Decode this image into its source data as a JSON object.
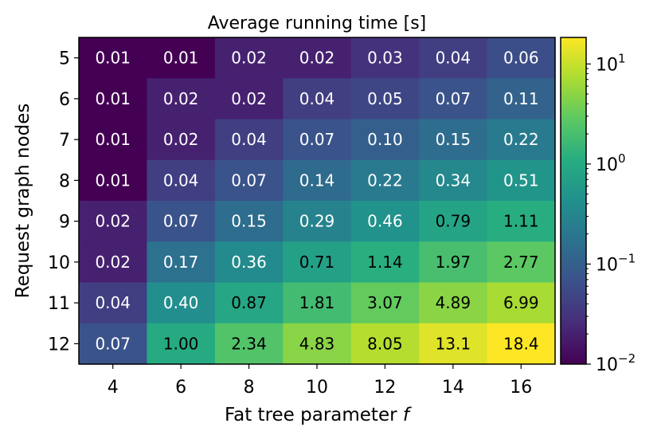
{
  "chart_data": {
    "type": "heatmap",
    "title": "Average running time [s]",
    "xlabel": "Fat tree parameter",
    "xlabel_var": "f",
    "ylabel": "Request graph nodes",
    "x": [
      "4",
      "6",
      "8",
      "10",
      "12",
      "14",
      "16"
    ],
    "y": [
      "5",
      "6",
      "7",
      "8",
      "9",
      "10",
      "11",
      "12"
    ],
    "values": [
      [
        0.01,
        0.01,
        0.02,
        0.02,
        0.03,
        0.04,
        0.06
      ],
      [
        0.01,
        0.02,
        0.02,
        0.04,
        0.05,
        0.07,
        0.11
      ],
      [
        0.01,
        0.02,
        0.04,
        0.07,
        0.1,
        0.15,
        0.22
      ],
      [
        0.01,
        0.04,
        0.07,
        0.14,
        0.22,
        0.34,
        0.51
      ],
      [
        0.02,
        0.07,
        0.15,
        0.29,
        0.46,
        0.79,
        1.11
      ],
      [
        0.02,
        0.17,
        0.36,
        0.71,
        1.14,
        1.97,
        2.77
      ],
      [
        0.04,
        0.4,
        0.87,
        1.81,
        3.07,
        4.89,
        6.99
      ],
      [
        0.07,
        1.0,
        2.34,
        4.83,
        8.05,
        13.1,
        18.4
      ]
    ],
    "labels": [
      [
        "0.01",
        "0.01",
        "0.02",
        "0.02",
        "0.03",
        "0.04",
        "0.06"
      ],
      [
        "0.01",
        "0.02",
        "0.02",
        "0.04",
        "0.05",
        "0.07",
        "0.11"
      ],
      [
        "0.01",
        "0.02",
        "0.04",
        "0.07",
        "0.10",
        "0.15",
        "0.22"
      ],
      [
        "0.01",
        "0.04",
        "0.07",
        "0.14",
        "0.22",
        "0.34",
        "0.51"
      ],
      [
        "0.02",
        "0.07",
        "0.15",
        "0.29",
        "0.46",
        "0.79",
        "1.11"
      ],
      [
        "0.02",
        "0.17",
        "0.36",
        "0.71",
        "1.14",
        "1.97",
        "2.77"
      ],
      [
        "0.04",
        "0.40",
        "0.87",
        "1.81",
        "3.07",
        "4.89",
        "6.99"
      ],
      [
        "0.07",
        "1.00",
        "2.34",
        "4.83",
        "8.05",
        "13.1",
        "18.4"
      ]
    ],
    "colorbar": {
      "scale": "log",
      "range": [
        0.01,
        18.4
      ],
      "ticks": [
        {
          "value": 0.01,
          "base": "10",
          "exp": "−2"
        },
        {
          "value": 0.1,
          "base": "10",
          "exp": "−1"
        },
        {
          "value": 1,
          "base": "10",
          "exp": "0"
        },
        {
          "value": 10,
          "base": "10",
          "exp": "1"
        }
      ],
      "colormap": "viridis"
    }
  }
}
